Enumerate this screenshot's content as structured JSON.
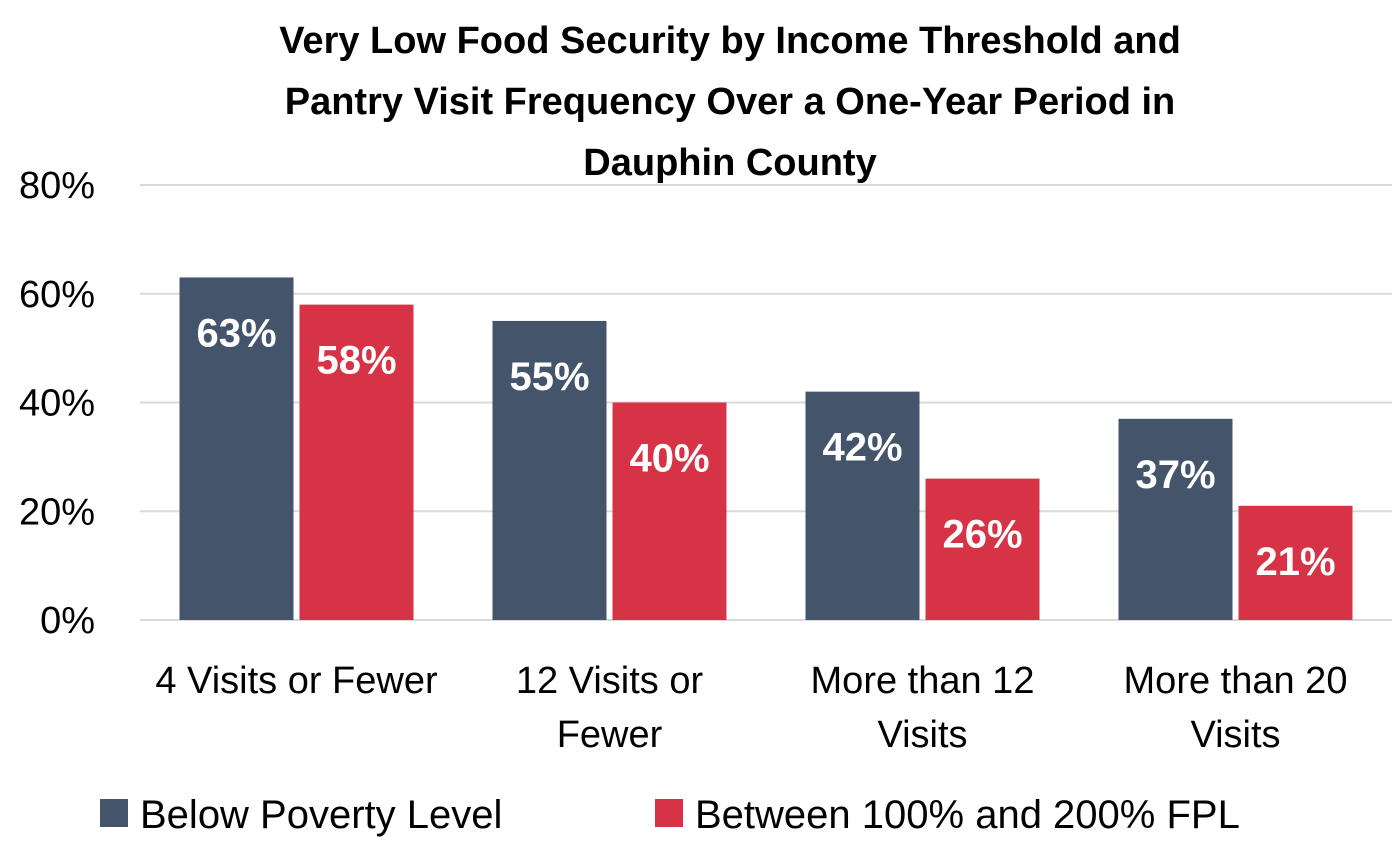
{
  "chart_data": {
    "type": "bar",
    "title_lines": [
      "Very Low Food Security by Income Threshold and",
      "Pantry Visit Frequency Over a One-Year Period in",
      "Dauphin County"
    ],
    "categories": [
      [
        "4 Visits or Fewer"
      ],
      [
        "12 Visits or",
        "Fewer"
      ],
      [
        "More than 12",
        "Visits"
      ],
      [
        "More than 20",
        "Visits"
      ]
    ],
    "series": [
      {
        "name": "Below Poverty Level",
        "color": "#44546a",
        "values": [
          63,
          55,
          42,
          37
        ],
        "labels": [
          "63%",
          "55%",
          "42%",
          "37%"
        ]
      },
      {
        "name": "Between 100% and 200% FPL",
        "color": "#d63446",
        "values": [
          58,
          40,
          26,
          21
        ],
        "labels": [
          "58%",
          "40%",
          "26%",
          "21%"
        ]
      }
    ],
    "y_ticks": [
      0,
      20,
      40,
      60,
      80
    ],
    "y_tick_labels": [
      "0%",
      "20%",
      "40%",
      "60%",
      "80%"
    ],
    "ylim": [
      0,
      80
    ],
    "grid": true,
    "legend_position": "bottom",
    "xlabel": "",
    "ylabel": ""
  }
}
